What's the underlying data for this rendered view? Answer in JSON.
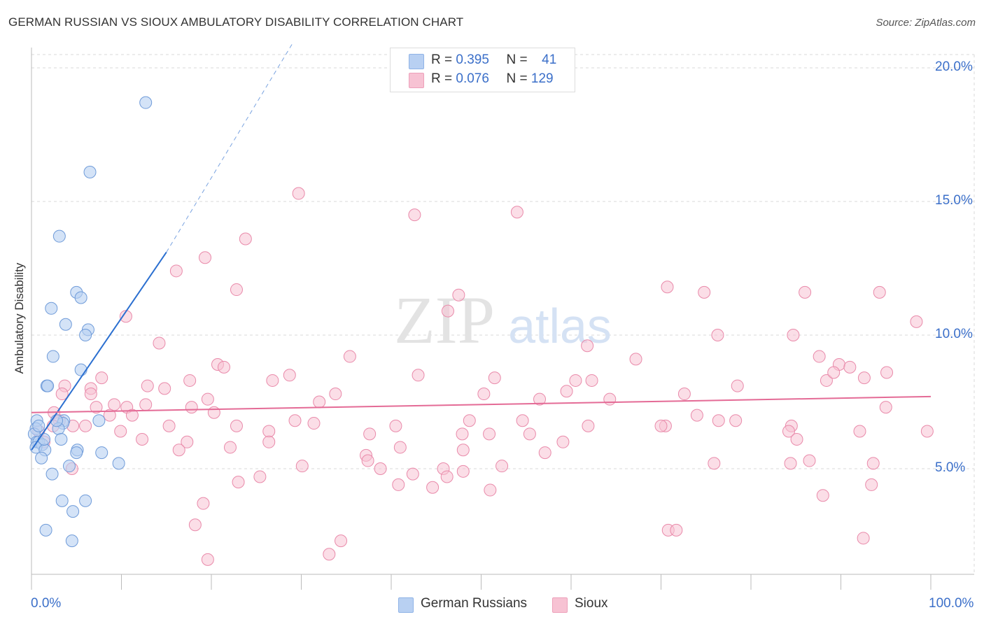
{
  "header": {
    "title": "GERMAN RUSSIAN VS SIOUX AMBULATORY DISABILITY CORRELATION CHART",
    "source": "Source: ZipAtlas.com"
  },
  "colors": {
    "blue": "#3b6fc9",
    "blue_fill": "#b8d0f2",
    "blue_line": "#2b6fd0",
    "pink_fill": "#f7c2d3",
    "pink_stroke": "#e98aaa",
    "pink_line": "#e46b96",
    "grid": "#d8d8d8"
  },
  "legend": {
    "rows": [
      {
        "r_label": "R =",
        "r_value": "0.395",
        "n_label": "N =",
        "n_value": "41"
      },
      {
        "r_label": "R =",
        "r_value": "0.076",
        "n_label": "N =",
        "n_value": "129"
      }
    ]
  },
  "bottom_legend": {
    "a": "German Russians",
    "b": "Sioux"
  },
  "watermark": {
    "zip": "ZIP",
    "atlas": "atlas"
  },
  "chart_data": {
    "type": "scatter",
    "title": "GERMAN RUSSIAN VS SIOUX AMBULATORY DISABILITY CORRELATION CHART",
    "xlabel": "",
    "ylabel": "Ambulatory Disability",
    "xlim": [
      0,
      100
    ],
    "ylim": [
      0,
      21
    ],
    "x_tick_labels": [
      "0.0%",
      "100.0%"
    ],
    "y_ticks": [
      5,
      10,
      15,
      20
    ],
    "y_tick_labels": [
      "5.0%",
      "10.0%",
      "15.0%",
      "20.0%"
    ],
    "grid": true,
    "legend_position": "top-center",
    "series": [
      {
        "name": "German Russians",
        "color": "#b8d0f2",
        "R": 0.395,
        "N": 41,
        "trend": {
          "x": [
            0,
            15
          ],
          "y": [
            5.7,
            13.1
          ],
          "dashed_to": [
            29,
            20.9
          ]
        },
        "points": [
          [
            12.7,
            18.7
          ],
          [
            6.5,
            16.1
          ],
          [
            3.1,
            13.7
          ],
          [
            5.0,
            11.6
          ],
          [
            5.5,
            11.4
          ],
          [
            2.2,
            11.0
          ],
          [
            3.8,
            10.4
          ],
          [
            6.3,
            10.2
          ],
          [
            6.0,
            10.0
          ],
          [
            2.4,
            9.2
          ],
          [
            5.5,
            8.7
          ],
          [
            1.7,
            8.1
          ],
          [
            1.8,
            8.1
          ],
          [
            0.6,
            6.8
          ],
          [
            3.6,
            6.8
          ],
          [
            3.5,
            6.7
          ],
          [
            7.5,
            6.8
          ],
          [
            3.0,
            6.5
          ],
          [
            0.5,
            6.5
          ],
          [
            0.3,
            6.3
          ],
          [
            0.6,
            6.0
          ],
          [
            0.8,
            6.0
          ],
          [
            1.2,
            5.9
          ],
          [
            3.3,
            6.1
          ],
          [
            0.5,
            5.8
          ],
          [
            1.5,
            5.7
          ],
          [
            5.1,
            5.7
          ],
          [
            5.0,
            5.6
          ],
          [
            7.8,
            5.6
          ],
          [
            1.1,
            5.4
          ],
          [
            4.2,
            5.1
          ],
          [
            9.7,
            5.2
          ],
          [
            2.3,
            4.8
          ],
          [
            3.4,
            3.8
          ],
          [
            6.0,
            3.8
          ],
          [
            4.6,
            3.4
          ],
          [
            1.6,
            2.7
          ],
          [
            4.5,
            2.3
          ],
          [
            0.8,
            6.6
          ],
          [
            1.4,
            6.1
          ],
          [
            2.8,
            6.8
          ]
        ]
      },
      {
        "name": "Sioux",
        "color": "#f7c2d3",
        "R": 0.076,
        "N": 129,
        "trend": {
          "x": [
            0,
            100
          ],
          "y": [
            7.1,
            7.7
          ]
        },
        "points": [
          [
            29.7,
            15.3
          ],
          [
            42.6,
            14.5
          ],
          [
            54.0,
            14.6
          ],
          [
            23.8,
            13.6
          ],
          [
            19.3,
            12.9
          ],
          [
            16.1,
            12.4
          ],
          [
            22.8,
            11.7
          ],
          [
            47.5,
            11.5
          ],
          [
            70.7,
            11.8
          ],
          [
            74.8,
            11.6
          ],
          [
            86.0,
            11.6
          ],
          [
            94.3,
            11.6
          ],
          [
            46.3,
            10.9
          ],
          [
            10.5,
            10.7
          ],
          [
            98.4,
            10.5
          ],
          [
            76.3,
            10.0
          ],
          [
            84.7,
            10.0
          ],
          [
            14.2,
            9.7
          ],
          [
            61.8,
            9.6
          ],
          [
            35.4,
            9.2
          ],
          [
            67.2,
            9.1
          ],
          [
            87.6,
            9.2
          ],
          [
            89.8,
            8.9
          ],
          [
            91.0,
            8.8
          ],
          [
            20.7,
            8.9
          ],
          [
            21.4,
            8.8
          ],
          [
            28.7,
            8.5
          ],
          [
            43.0,
            8.5
          ],
          [
            51.5,
            8.4
          ],
          [
            78.5,
            8.1
          ],
          [
            7.8,
            8.4
          ],
          [
            17.6,
            8.3
          ],
          [
            26.8,
            8.3
          ],
          [
            60.5,
            8.3
          ],
          [
            62.3,
            8.3
          ],
          [
            88.4,
            8.3
          ],
          [
            92.6,
            8.4
          ],
          [
            95.1,
            8.6
          ],
          [
            89.2,
            8.6
          ],
          [
            3.7,
            8.1
          ],
          [
            6.6,
            8.0
          ],
          [
            12.9,
            8.1
          ],
          [
            14.8,
            8.0
          ],
          [
            3.4,
            7.8
          ],
          [
            6.6,
            7.8
          ],
          [
            33.8,
            7.8
          ],
          [
            50.3,
            7.8
          ],
          [
            59.5,
            7.9
          ],
          [
            72.6,
            7.8
          ],
          [
            19.6,
            7.6
          ],
          [
            32.0,
            7.5
          ],
          [
            56.5,
            7.6
          ],
          [
            64.3,
            7.6
          ],
          [
            9.2,
            7.4
          ],
          [
            7.2,
            7.3
          ],
          [
            10.6,
            7.3
          ],
          [
            12.7,
            7.4
          ],
          [
            17.8,
            7.3
          ],
          [
            20.3,
            7.1
          ],
          [
            95.0,
            7.3
          ],
          [
            2.5,
            7.1
          ],
          [
            8.7,
            7.0
          ],
          [
            11.2,
            7.0
          ],
          [
            3.1,
            6.8
          ],
          [
            29.3,
            6.8
          ],
          [
            31.4,
            6.7
          ],
          [
            48.7,
            6.8
          ],
          [
            54.6,
            6.8
          ],
          [
            74.0,
            7.0
          ],
          [
            76.4,
            6.8
          ],
          [
            78.3,
            6.8
          ],
          [
            2.4,
            6.6
          ],
          [
            6.0,
            6.6
          ],
          [
            15.3,
            6.6
          ],
          [
            22.8,
            6.6
          ],
          [
            40.5,
            6.6
          ],
          [
            61.9,
            6.6
          ],
          [
            70.5,
            6.6
          ],
          [
            84.5,
            6.6
          ],
          [
            0.8,
            6.4
          ],
          [
            4.6,
            6.6
          ],
          [
            9.9,
            6.4
          ],
          [
            26.4,
            6.4
          ],
          [
            37.6,
            6.3
          ],
          [
            50.9,
            6.3
          ],
          [
            84.2,
            6.4
          ],
          [
            92.1,
            6.4
          ],
          [
            99.6,
            6.4
          ],
          [
            1.4,
            6.0
          ],
          [
            12.3,
            6.1
          ],
          [
            17.3,
            6.0
          ],
          [
            26.4,
            6.0
          ],
          [
            41.0,
            5.8
          ],
          [
            47.9,
            6.3
          ],
          [
            55.4,
            6.3
          ],
          [
            59.1,
            6.0
          ],
          [
            70.0,
            6.6
          ],
          [
            85.1,
            6.1
          ],
          [
            22.1,
            5.8
          ],
          [
            37.2,
            5.5
          ],
          [
            16.4,
            5.7
          ],
          [
            57.1,
            5.6
          ],
          [
            37.4,
            5.3
          ],
          [
            48.0,
            5.7
          ],
          [
            75.9,
            5.2
          ],
          [
            84.4,
            5.2
          ],
          [
            4.5,
            5.0
          ],
          [
            30.1,
            5.1
          ],
          [
            38.8,
            5.0
          ],
          [
            45.8,
            5.0
          ],
          [
            52.3,
            5.1
          ],
          [
            93.6,
            5.2
          ],
          [
            86.5,
            5.3
          ],
          [
            42.4,
            4.8
          ],
          [
            48.0,
            4.9
          ],
          [
            25.4,
            4.7
          ],
          [
            46.2,
            4.7
          ],
          [
            23.0,
            4.5
          ],
          [
            88.0,
            4.0
          ],
          [
            40.8,
            4.4
          ],
          [
            93.4,
            4.4
          ],
          [
            44.6,
            4.3
          ],
          [
            51.0,
            4.2
          ],
          [
            70.8,
            2.7
          ],
          [
            71.7,
            2.7
          ],
          [
            92.5,
            2.4
          ],
          [
            34.4,
            2.3
          ],
          [
            33.1,
            1.8
          ],
          [
            19.6,
            1.6
          ],
          [
            18.2,
            2.9
          ],
          [
            19.1,
            3.7
          ]
        ]
      }
    ]
  }
}
